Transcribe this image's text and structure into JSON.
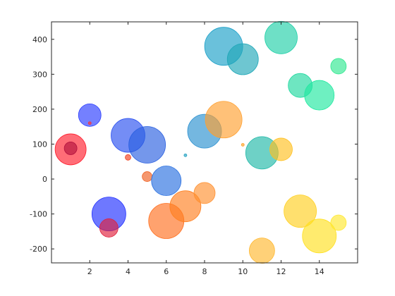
{
  "chart_data": {
    "type": "scatter",
    "title": "",
    "xlabel": "",
    "ylabel": "",
    "xlim": [
      0,
      16
    ],
    "ylim": [
      -240,
      450
    ],
    "grid": false,
    "xticks": [
      2,
      4,
      6,
      8,
      10,
      12,
      14
    ],
    "yticks": [
      -200,
      -100,
      0,
      100,
      200,
      300,
      400
    ],
    "points": [
      {
        "x": 1,
        "y": 85,
        "r": 22,
        "color": "#ff1f2e"
      },
      {
        "x": 1,
        "y": 88,
        "r": 9,
        "color": "#b4123e"
      },
      {
        "x": 2,
        "y": 183,
        "r": 16,
        "color": "#2a3cff"
      },
      {
        "x": 2,
        "y": 160,
        "r": 2,
        "color": "#ff3030"
      },
      {
        "x": 3,
        "y": -100,
        "r": 24,
        "color": "#2030ff"
      },
      {
        "x": 3,
        "y": -140,
        "r": 13,
        "color": "#e0203c"
      },
      {
        "x": 4,
        "y": 125,
        "r": 24,
        "color": "#2a50f0"
      },
      {
        "x": 4,
        "y": 62,
        "r": 4,
        "color": "#f04020"
      },
      {
        "x": 5,
        "y": 98,
        "r": 26,
        "color": "#2a60e0"
      },
      {
        "x": 5,
        "y": 7,
        "r": 7,
        "color": "#f06020"
      },
      {
        "x": 6,
        "y": -5,
        "r": 21,
        "color": "#2a70e0"
      },
      {
        "x": 6,
        "y": -120,
        "r": 25,
        "color": "#ff7020"
      },
      {
        "x": 7,
        "y": -78,
        "r": 22,
        "color": "#ff8020"
      },
      {
        "x": 7,
        "y": 68,
        "r": 2,
        "color": "#20a0c0"
      },
      {
        "x": 8,
        "y": 137,
        "r": 24,
        "color": "#2a90d0"
      },
      {
        "x": 8,
        "y": -40,
        "r": 15,
        "color": "#ff9030"
      },
      {
        "x": 9,
        "y": 380,
        "r": 27,
        "color": "#1aa0c8"
      },
      {
        "x": 9,
        "y": 170,
        "r": 26,
        "color": "#ffa030"
      },
      {
        "x": 10,
        "y": 343,
        "r": 22,
        "color": "#20a8b8"
      },
      {
        "x": 10,
        "y": 98,
        "r": 2,
        "color": "#ffa020"
      },
      {
        "x": 11,
        "y": 75,
        "r": 23,
        "color": "#20b8a8"
      },
      {
        "x": 11,
        "y": -205,
        "r": 18,
        "color": "#ffb830"
      },
      {
        "x": 12,
        "y": 405,
        "r": 23,
        "color": "#20d0a8"
      },
      {
        "x": 12,
        "y": 85,
        "r": 16,
        "color": "#ffc020"
      },
      {
        "x": 13,
        "y": 268,
        "r": 17,
        "color": "#20d8a0"
      },
      {
        "x": 13,
        "y": -92,
        "r": 23,
        "color": "#ffd020"
      },
      {
        "x": 14,
        "y": 240,
        "r": 21,
        "color": "#20e8a0"
      },
      {
        "x": 14,
        "y": -163,
        "r": 24,
        "color": "#ffe020"
      },
      {
        "x": 15,
        "y": 323,
        "r": 11,
        "color": "#30e890"
      },
      {
        "x": 15,
        "y": -125,
        "r": 11,
        "color": "#ffe830"
      }
    ]
  }
}
